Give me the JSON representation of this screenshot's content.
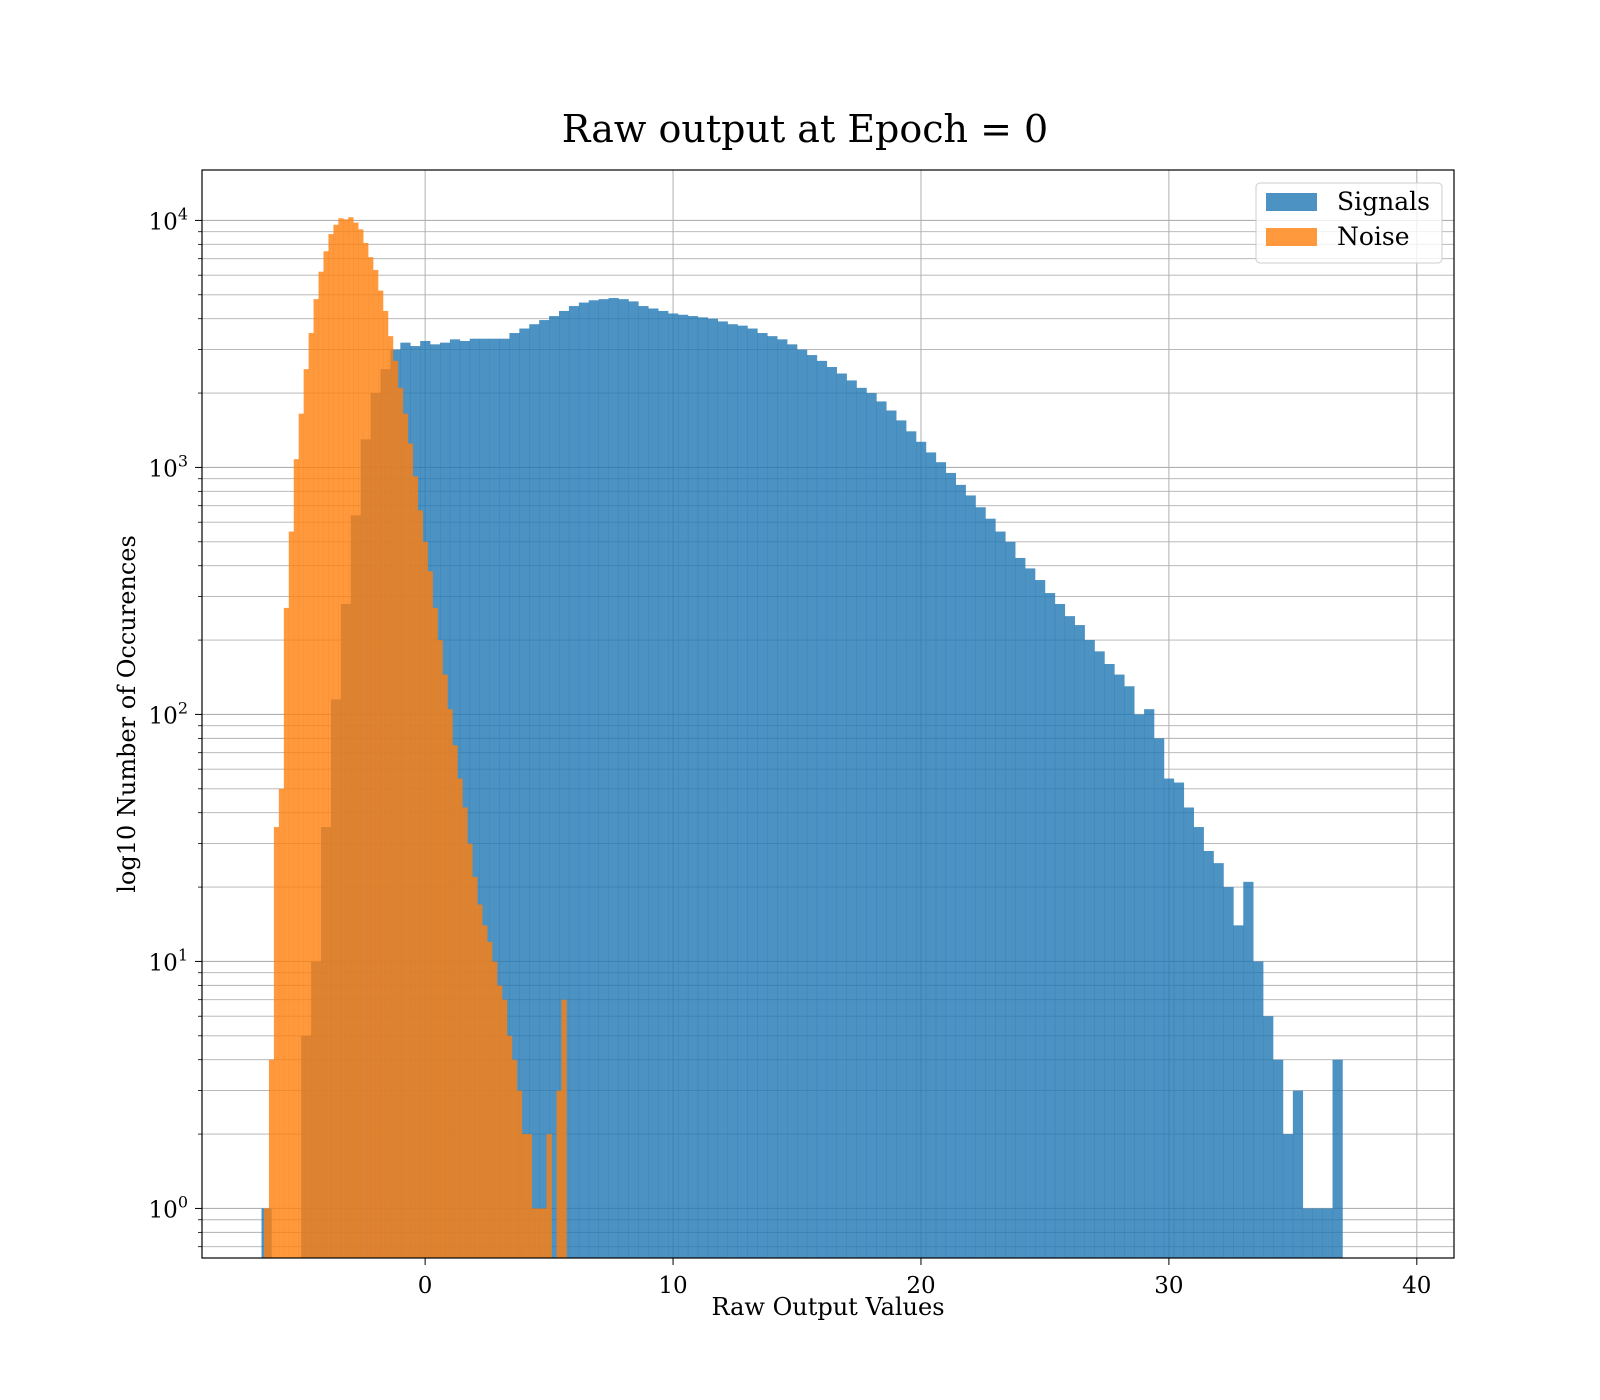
{
  "chart_data": {
    "type": "bar",
    "title": "Raw output at Epoch = 0",
    "xlabel": "Raw Output Values",
    "ylabel": "log10 Number of Occurences",
    "x_scale": "linear",
    "y_scale": "log",
    "xlim": [
      -9,
      41.5
    ],
    "ylim": [
      0.63,
      16000
    ],
    "xticks": [
      0,
      10,
      20,
      30,
      40
    ],
    "yticks": [
      1,
      10,
      100,
      1000,
      10000
    ],
    "ytick_labels": [
      {
        "base": "10",
        "exp": "0"
      },
      {
        "base": "10",
        "exp": "1"
      },
      {
        "base": "10",
        "exp": "2"
      },
      {
        "base": "10",
        "exp": "3"
      },
      {
        "base": "10",
        "exp": "4"
      }
    ],
    "grid": true,
    "legend_position": "top-right",
    "series": [
      {
        "name": "Signals",
        "color": "#1f77b4",
        "opacity": 0.8,
        "bin_start": -6.6,
        "bin_width": 0.4,
        "values": [
          1,
          0,
          0,
          0,
          5,
          10,
          35,
          115,
          280,
          640,
          1300,
          2000,
          2500,
          3000,
          3200,
          3100,
          3250,
          3150,
          3200,
          3300,
          3250,
          3320,
          3320,
          3320,
          3320,
          3500,
          3650,
          3800,
          3950,
          4100,
          4300,
          4500,
          4650,
          4750,
          4800,
          4850,
          4800,
          4700,
          4500,
          4400,
          4300,
          4200,
          4150,
          4100,
          4050,
          4000,
          3900,
          3800,
          3750,
          3650,
          3500,
          3400,
          3300,
          3150,
          3000,
          2850,
          2700,
          2550,
          2400,
          2250,
          2100,
          2000,
          1850,
          1700,
          1550,
          1400,
          1270,
          1150,
          1050,
          950,
          850,
          770,
          690,
          620,
          550,
          500,
          430,
          390,
          350,
          310,
          280,
          250,
          230,
          200,
          180,
          160,
          145,
          130,
          100,
          105,
          80,
          55,
          53,
          42,
          35,
          28,
          25,
          20,
          14,
          21,
          10,
          6,
          4,
          2,
          3,
          1,
          1,
          1,
          4
        ]
      },
      {
        "name": "Noise",
        "color": "#ff7f0e",
        "opacity": 0.8,
        "bin_start": -6.5,
        "bin_width": 0.2,
        "values": [
          1,
          4,
          35,
          50,
          270,
          550,
          1080,
          1650,
          2500,
          3500,
          4800,
          6200,
          7500,
          8800,
          9600,
          10200,
          10100,
          10300,
          9800,
          9200,
          8100,
          7100,
          6300,
          5200,
          4300,
          3400,
          2700,
          2100,
          1650,
          1250,
          920,
          670,
          500,
          380,
          270,
          200,
          145,
          105,
          75,
          55,
          42,
          30,
          22,
          17,
          14,
          12,
          10,
          8,
          7,
          5,
          4,
          3,
          2,
          2,
          1,
          1,
          1,
          2,
          0,
          3,
          7
        ]
      }
    ]
  }
}
